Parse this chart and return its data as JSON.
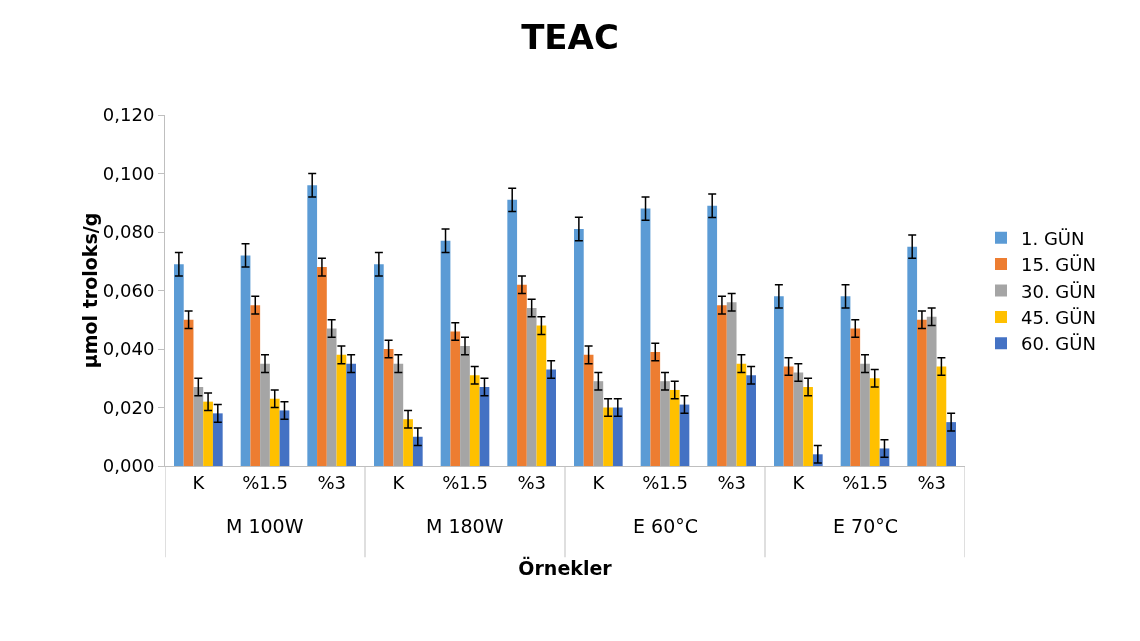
{
  "chart_data": {
    "type": "bar",
    "title": "TEAC",
    "xlabel": "Örnekler",
    "ylabel": "µmol troloks/g",
    "categories": [
      "K",
      "%1.5",
      "%3",
      "K",
      "%1.5",
      "%3",
      "K",
      "%1.5",
      "%3",
      "K",
      "%1.5",
      "%3"
    ],
    "annotations": [
      "M 100W",
      "M 180W",
      "E 60°C",
      "E 70°C"
    ],
    "series": [
      {
        "name": "1. GÜN",
        "color": "#5b9bd5",
        "values": [
          0.069,
          0.072,
          0.096,
          0.069,
          0.077,
          0.091,
          0.081,
          0.088,
          0.089,
          0.058,
          0.058,
          0.075
        ],
        "errors": [
          0.004,
          0.004,
          0.004,
          0.004,
          0.004,
          0.004,
          0.004,
          0.004,
          0.004,
          0.004,
          0.004,
          0.004
        ]
      },
      {
        "name": "15. GÜN",
        "color": "#ed7d31",
        "values": [
          0.05,
          0.055,
          0.068,
          0.04,
          0.046,
          0.062,
          0.038,
          0.039,
          0.055,
          0.034,
          0.047,
          0.05
        ],
        "errors": [
          0.003,
          0.003,
          0.003,
          0.003,
          0.003,
          0.003,
          0.003,
          0.003,
          0.003,
          0.003,
          0.003,
          0.003
        ]
      },
      {
        "name": "30. GÜN",
        "color": "#a5a5a5",
        "values": [
          0.027,
          0.035,
          0.047,
          0.035,
          0.041,
          0.054,
          0.029,
          0.029,
          0.056,
          0.032,
          0.035,
          0.051
        ],
        "errors": [
          0.003,
          0.003,
          0.003,
          0.003,
          0.003,
          0.003,
          0.003,
          0.003,
          0.003,
          0.003,
          0.003,
          0.003
        ]
      },
      {
        "name": "45. GÜN",
        "color": "#ffc000",
        "values": [
          0.022,
          0.023,
          0.038,
          0.016,
          0.031,
          0.048,
          0.02,
          0.026,
          0.035,
          0.027,
          0.03,
          0.034
        ],
        "errors": [
          0.003,
          0.003,
          0.003,
          0.003,
          0.003,
          0.003,
          0.003,
          0.003,
          0.003,
          0.003,
          0.003,
          0.003
        ]
      },
      {
        "name": "60. GÜN",
        "color": "#4472c4",
        "values": [
          0.018,
          0.019,
          0.035,
          0.01,
          0.027,
          0.033,
          0.02,
          0.021,
          0.031,
          0.004,
          0.006,
          0.015
        ],
        "errors": [
          0.003,
          0.003,
          0.003,
          0.003,
          0.003,
          0.003,
          0.003,
          0.003,
          0.003,
          0.003,
          0.003,
          0.003
        ]
      }
    ],
    "ylim": [
      0,
      0.12
    ],
    "yticks": [
      {
        "value": 0,
        "label": "0,000"
      },
      {
        "value": 0.02,
        "label": "0,020"
      },
      {
        "value": 0.04,
        "label": "0,040"
      },
      {
        "value": 0.06,
        "label": "0,060"
      },
      {
        "value": 0.08,
        "label": "0,080"
      },
      {
        "value": 0.1,
        "label": "0,100"
      },
      {
        "value": 0.12,
        "label": "0,120"
      }
    ],
    "grid": false,
    "legend": "right"
  }
}
